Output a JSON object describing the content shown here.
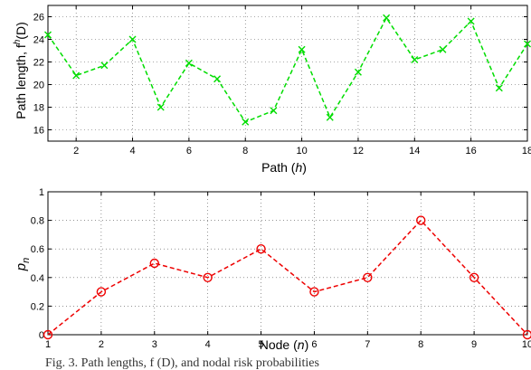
{
  "chart_data": [
    {
      "type": "line",
      "ylabel_main": "Path length, f",
      "ylabel_sup": "h",
      "ylabel_tail": "(D)",
      "xlabel_main": "Path (",
      "xlabel_var": "h",
      "xlabel_tail": ")",
      "xlim": [
        1,
        18
      ],
      "ylim": [
        15,
        27
      ],
      "xticks": [
        2,
        4,
        6,
        8,
        10,
        12,
        14,
        16,
        18
      ],
      "yticks": [
        16,
        18,
        20,
        22,
        24,
        26
      ],
      "grid": true,
      "series": [
        {
          "color": "#00dd00",
          "marker": "x",
          "linestyle": "dashed",
          "x": [
            1,
            2,
            3,
            4,
            5,
            6,
            7,
            8,
            9,
            10,
            11,
            12,
            13,
            14,
            15,
            16,
            17,
            18
          ],
          "y": [
            24.4,
            20.8,
            21.7,
            24.0,
            18.0,
            21.9,
            20.5,
            16.7,
            17.7,
            23.1,
            17.1,
            21.1,
            25.9,
            22.2,
            23.1,
            25.6,
            19.7,
            23.6
          ]
        }
      ]
    },
    {
      "type": "line",
      "ylabel_main": "p",
      "ylabel_sub": "n",
      "xlabel_main": "Node (",
      "xlabel_var": "n",
      "xlabel_tail": ")",
      "xlim": [
        1,
        10
      ],
      "ylim": [
        0,
        1
      ],
      "xticks": [
        1,
        2,
        3,
        4,
        5,
        6,
        7,
        8,
        9,
        10
      ],
      "yticks": [
        0,
        0.2,
        0.4,
        0.6,
        0.8,
        1
      ],
      "grid": true,
      "series": [
        {
          "color": "#ee0000",
          "marker": "o",
          "linestyle": "dashed",
          "x": [
            1,
            2,
            3,
            4,
            5,
            6,
            7,
            8,
            9,
            10
          ],
          "y": [
            0,
            0.3,
            0.5,
            0.4,
            0.6,
            0.3,
            0.4,
            0.8,
            0.4,
            0
          ]
        }
      ]
    }
  ],
  "caption": "Fig. 3.   Path lengths, f  (D), and nodal risk probabilities"
}
